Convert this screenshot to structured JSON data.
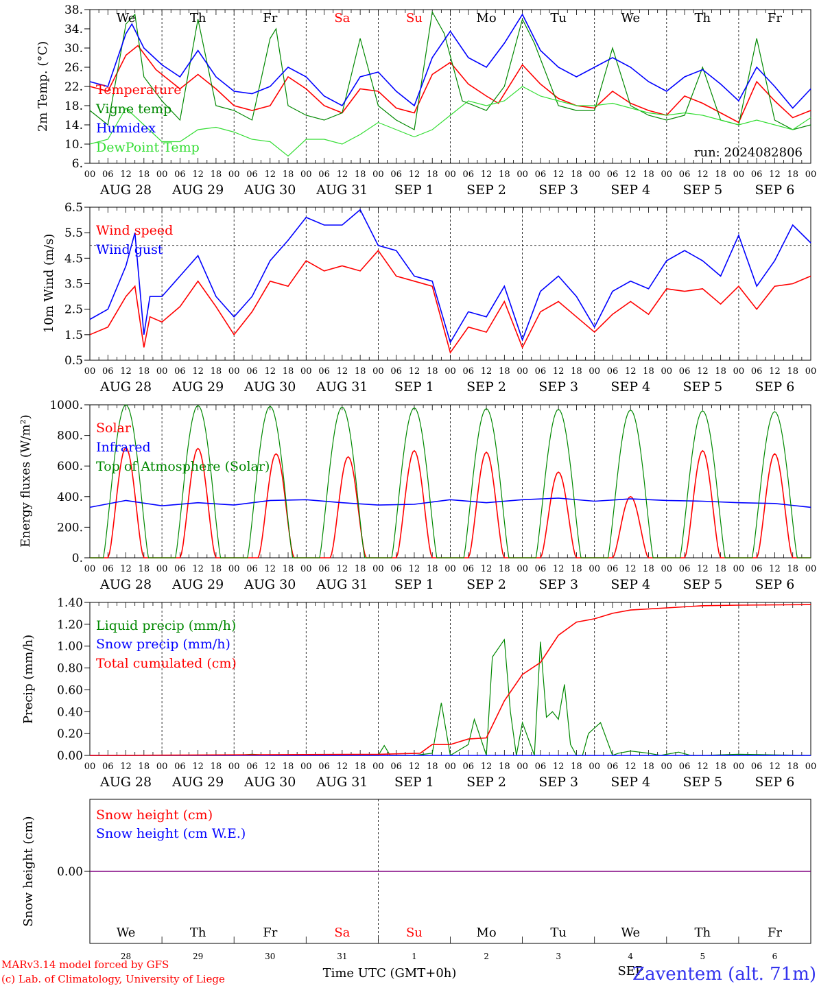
{
  "colors": {
    "red": "#ff0000",
    "green": "#008800",
    "blue": "#0000ff",
    "light_green": "#33dd33",
    "purple": "#800080",
    "black": "#000000"
  },
  "time_axis": {
    "hour_ticks": [
      "00",
      "06",
      "12",
      "18"
    ],
    "date_labels": [
      "AUG 28",
      "AUG 29",
      "AUG 30",
      "AUG 31",
      "SEP  1",
      "SEP  2",
      "SEP  3",
      "SEP  4",
      "SEP  5",
      "SEP  6"
    ],
    "weekday_labels": [
      "We",
      "Th",
      "Fr",
      "Sa",
      "Su",
      "Mo",
      "Tu",
      "We",
      "Th",
      "Fr"
    ],
    "weekend_days": [
      3,
      4
    ],
    "day_numbers": [
      "28",
      "29",
      "30",
      "31",
      "1",
      "2",
      "3",
      "4",
      "5",
      "6"
    ],
    "month_label": "SEP",
    "xlabel": "Time UTC (GMT+0h)"
  },
  "footer": {
    "credit_line1": "MARv3.14 model forced by GFS",
    "credit_line2": "(c) Lab. of Climatology, University of Liege",
    "station": "Zaventem (alt. 71m)"
  },
  "chart_data": [
    {
      "type": "line",
      "ylabel": "2m Temp. (°C)",
      "yticks": [
        "38.",
        "34.",
        "30.",
        "26.",
        "22.",
        "18.",
        "14.",
        "10.",
        "6."
      ],
      "ylim": [
        6,
        38
      ],
      "run_label": "run: 2024082806",
      "x_unit": "hours from 2024-08-28 00 UTC",
      "series": [
        {
          "name": "Temperature",
          "color": "red",
          "x": [
            0,
            6,
            12,
            16,
            22,
            24,
            30,
            36,
            42,
            48,
            54,
            60,
            66,
            72,
            78,
            84,
            90,
            96,
            102,
            108,
            114,
            120,
            126,
            132,
            136,
            144,
            150,
            156,
            162,
            168,
            174,
            180,
            186,
            192,
            198,
            204,
            210,
            216,
            222,
            228,
            234,
            240
          ],
          "values": [
            22,
            21,
            28.5,
            30.5,
            25.5,
            24.5,
            21.5,
            24.5,
            21.5,
            18,
            17,
            18,
            24,
            21.5,
            18,
            16.5,
            21.5,
            21,
            17.5,
            16.5,
            24.5,
            27,
            22.5,
            20,
            18.5,
            26.5,
            22.5,
            19.5,
            18,
            17.5,
            21,
            18.5,
            17,
            16,
            20,
            18.5,
            16.5,
            14.5,
            23,
            19,
            15.5,
            17
          ]
        },
        {
          "name": "Vigne temp",
          "color": "green",
          "x": [
            0,
            6,
            12,
            15,
            18,
            24,
            30,
            36,
            42,
            48,
            54,
            60,
            62,
            66,
            72,
            78,
            84,
            90,
            96,
            102,
            108,
            114,
            118,
            124,
            132,
            138,
            144,
            148,
            156,
            162,
            168,
            174,
            180,
            186,
            192,
            198,
            204,
            210,
            216,
            222,
            228,
            234,
            240
          ],
          "values": [
            17,
            14,
            35,
            37,
            24,
            19,
            15,
            36,
            18,
            17,
            15,
            32,
            34,
            18,
            16,
            15,
            16.5,
            32,
            18,
            15,
            13,
            37.5,
            33,
            19,
            17,
            22,
            36,
            31,
            18,
            17,
            17,
            30,
            18,
            16,
            15,
            16,
            26,
            15,
            14,
            32,
            15,
            13,
            14
          ]
        },
        {
          "name": "Humidex",
          "color": "blue",
          "x": [
            0,
            6,
            12,
            14,
            18,
            24,
            30,
            36,
            42,
            48,
            54,
            60,
            66,
            72,
            78,
            84,
            90,
            96,
            102,
            108,
            114,
            120,
            126,
            132,
            138,
            144,
            150,
            156,
            162,
            168,
            174,
            180,
            186,
            192,
            198,
            204,
            210,
            216,
            222,
            228,
            234,
            240
          ],
          "values": [
            23,
            22,
            33,
            35,
            30,
            26.5,
            24,
            29.5,
            24,
            21,
            20.5,
            22,
            26,
            24,
            20,
            18,
            24,
            25,
            21,
            18,
            28,
            33.5,
            28,
            26,
            31,
            37,
            29.5,
            26,
            24,
            26,
            28,
            26,
            23,
            21,
            24,
            25.5,
            22.5,
            19,
            26,
            22,
            17.5,
            21.5
          ]
        },
        {
          "name": "DewPoint Temp",
          "color": "light_green",
          "x": [
            0,
            6,
            12,
            18,
            24,
            30,
            36,
            42,
            48,
            54,
            60,
            66,
            72,
            78,
            84,
            90,
            96,
            102,
            108,
            114,
            120,
            126,
            132,
            138,
            144,
            150,
            156,
            162,
            168,
            174,
            180,
            186,
            192,
            198,
            204,
            210,
            216,
            222,
            228,
            234,
            240
          ],
          "values": [
            10,
            11,
            17.5,
            14,
            10.5,
            10.5,
            13,
            13.5,
            12.5,
            11,
            10.5,
            7.5,
            11,
            11,
            10,
            12,
            14.5,
            13,
            11.5,
            13,
            16,
            19,
            18,
            19,
            22,
            20,
            19,
            18,
            18,
            18.5,
            17.5,
            16.5,
            16,
            16.5,
            16,
            15,
            14,
            15,
            14,
            13,
            15.5
          ]
        }
      ]
    },
    {
      "type": "line",
      "ylabel": "10m Wind (m/s)",
      "yticks": [
        "6.5",
        "5.5",
        "4.5",
        "3.5",
        "2.5",
        "1.5",
        "0.5"
      ],
      "ylim": [
        0.5,
        6.5
      ],
      "reference_line": 5.0,
      "x_unit": "hours from 2024-08-28 00 UTC",
      "series": [
        {
          "name": "Wind speed",
          "color": "red",
          "x": [
            0,
            6,
            12,
            15,
            18,
            20,
            24,
            30,
            36,
            42,
            48,
            54,
            60,
            66,
            72,
            78,
            84,
            90,
            96,
            102,
            108,
            114,
            120,
            126,
            132,
            138,
            144,
            150,
            156,
            162,
            168,
            174,
            180,
            186,
            192,
            198,
            204,
            210,
            216,
            222,
            228,
            234,
            240
          ],
          "values": [
            1.5,
            1.8,
            3,
            3.4,
            1,
            2.2,
            2,
            2.6,
            3.6,
            2.6,
            1.5,
            2.4,
            3.6,
            3.4,
            4.4,
            4,
            4.2,
            4,
            4.8,
            3.8,
            3.6,
            3.4,
            0.8,
            1.8,
            1.6,
            2.8,
            1,
            2.4,
            2.8,
            2.2,
            1.6,
            2.3,
            2.8,
            2.3,
            3.3,
            3.2,
            3.3,
            2.7,
            3.4,
            2.5,
            3.4,
            3.5,
            3.8
          ]
        },
        {
          "name": "Wind gust",
          "color": "blue",
          "x": [
            0,
            6,
            12,
            15,
            18,
            20,
            24,
            30,
            36,
            42,
            48,
            54,
            60,
            66,
            72,
            78,
            84,
            90,
            96,
            102,
            108,
            114,
            120,
            126,
            132,
            138,
            144,
            150,
            156,
            162,
            168,
            174,
            180,
            186,
            192,
            198,
            204,
            210,
            216,
            222,
            228,
            234,
            240
          ],
          "values": [
            2.1,
            2.5,
            4.2,
            5.5,
            1.5,
            3,
            3,
            3.8,
            4.6,
            3,
            2.2,
            3,
            4.4,
            5.2,
            6.1,
            5.8,
            5.8,
            6.4,
            5,
            4.8,
            3.8,
            3.6,
            1.2,
            2.4,
            2.2,
            3.4,
            1.3,
            3.2,
            3.8,
            3,
            1.8,
            3.2,
            3.6,
            3.3,
            4.4,
            4.8,
            4.4,
            3.8,
            5.4,
            3.4,
            4.4,
            5.8,
            5.1
          ]
        }
      ]
    },
    {
      "type": "line",
      "ylabel": "Energy fluxes (W/m²)",
      "yticks": [
        "1000.",
        "800.",
        "600.",
        "400.",
        "200.",
        "0."
      ],
      "ylim": [
        0,
        1000
      ],
      "x_unit": "hours from 2024-08-28 00 UTC",
      "series": [
        {
          "name": "Solar",
          "color": "red",
          "peaks_x": [
            12,
            12,
            14,
            14,
            12,
            12,
            12,
            12,
            12,
            12
          ],
          "peaks_value": [
            720,
            715,
            680,
            660,
            700,
            690,
            560,
            400,
            700,
            680
          ]
        },
        {
          "name": "Infrared",
          "color": "blue",
          "x": [
            0,
            12,
            24,
            36,
            48,
            60,
            72,
            84,
            96,
            108,
            120,
            132,
            144,
            156,
            168,
            180,
            192,
            204,
            216,
            228,
            240
          ],
          "values": [
            330,
            375,
            340,
            360,
            345,
            375,
            380,
            360,
            345,
            350,
            380,
            360,
            380,
            390,
            370,
            385,
            375,
            370,
            360,
            355,
            330
          ]
        },
        {
          "name": "Top of Atmosphere (Solar)",
          "color": "green",
          "peaks_x": [
            12,
            12,
            12,
            12,
            12,
            12,
            12,
            12,
            12,
            12
          ],
          "peaks_value": [
            1000,
            995,
            990,
            985,
            980,
            975,
            970,
            965,
            960,
            955
          ]
        }
      ]
    },
    {
      "type": "line",
      "ylabel": "Precip (mm/h)",
      "yticks": [
        "1.40",
        "1.20",
        "1.00",
        "0.80",
        "0.60",
        "0.40",
        "0.20",
        "0.00"
      ],
      "ylim": [
        0,
        1.4
      ],
      "x_unit": "hours from 2024-08-28 00 UTC",
      "series": [
        {
          "name": "Liquid precip (mm/h)",
          "color": "green",
          "x": [
            0,
            48,
            54,
            60,
            96,
            98,
            100,
            108,
            114,
            117,
            120,
            126,
            128,
            132,
            134,
            138,
            140,
            142,
            144,
            148,
            150,
            152,
            154,
            156,
            158,
            160,
            162,
            164,
            166,
            170,
            174,
            176,
            180,
            186,
            190,
            192,
            196,
            200,
            204,
            216,
            240
          ],
          "values": [
            0,
            0,
            0.01,
            0,
            0,
            0.09,
            0,
            0,
            0.02,
            0.48,
            0,
            0.1,
            0.33,
            0,
            0.9,
            1.06,
            0.4,
            0,
            0.3,
            0,
            1.04,
            0.35,
            0.4,
            0.33,
            0.65,
            0.1,
            0,
            0,
            0.2,
            0.3,
            0,
            0.02,
            0.04,
            0.02,
            0,
            0.01,
            0.03,
            0,
            0,
            0.01,
            0
          ]
        },
        {
          "name": "Snow precip (mm/h)",
          "color": "blue",
          "x": [
            0,
            240
          ],
          "values": [
            0,
            0
          ]
        },
        {
          "name": "Total cumulated (cm)",
          "color": "red",
          "x": [
            0,
            48,
            96,
            110,
            114,
            120,
            126,
            132,
            138,
            144,
            150,
            156,
            162,
            168,
            174,
            180,
            192,
            204,
            216,
            240
          ],
          "values": [
            0,
            0.005,
            0.01,
            0.02,
            0.1,
            0.1,
            0.15,
            0.16,
            0.5,
            0.74,
            0.85,
            1.1,
            1.22,
            1.25,
            1.3,
            1.33,
            1.35,
            1.37,
            1.375,
            1.38
          ]
        }
      ]
    },
    {
      "type": "line",
      "ylabel": "Snow height (cm)",
      "yticks": [
        "0.00"
      ],
      "ylim": [
        -1,
        1
      ],
      "x_unit": "hours from 2024-08-28 00 UTC",
      "series": [
        {
          "name": "Snow height (cm)",
          "color": "red",
          "x": [
            0,
            240
          ],
          "values": [
            0,
            0
          ]
        },
        {
          "name": "Snow height (cm W.E.)",
          "color": "blue",
          "x": [
            0,
            240
          ],
          "values": [
            0,
            0
          ]
        }
      ]
    }
  ]
}
